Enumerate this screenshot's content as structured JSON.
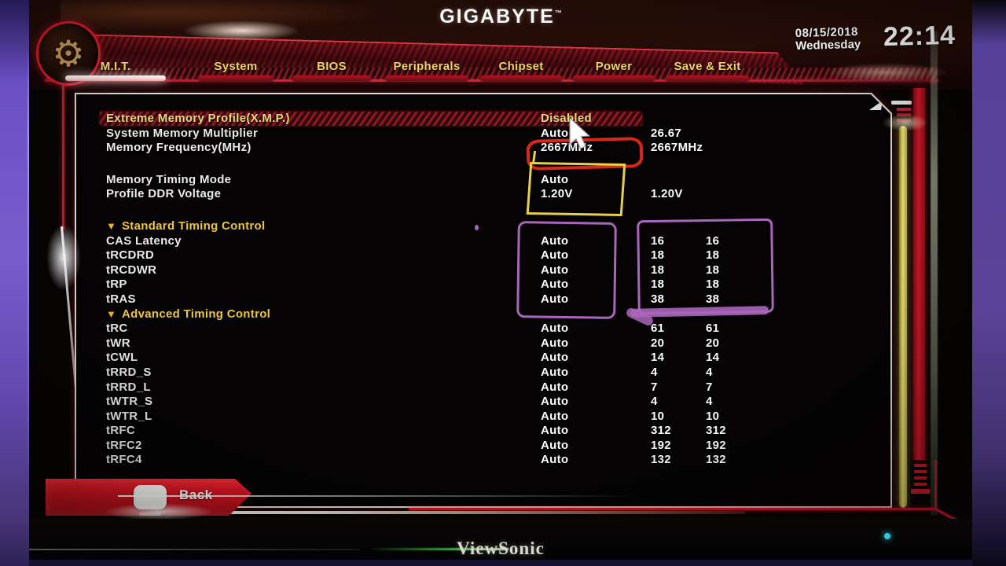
{
  "header": {
    "brand": "GIGABYTE",
    "trademark": "™",
    "date": "08/15/2018",
    "weekday": "Wednesday",
    "time": "22:14"
  },
  "icons": {
    "gear": "⚙",
    "section_collapse": "▼"
  },
  "tabs": [
    {
      "label": "M.I.T.",
      "active": true
    },
    {
      "label": "System",
      "active": false
    },
    {
      "label": "BIOS",
      "active": false
    },
    {
      "label": "Peripherals",
      "active": false
    },
    {
      "label": "Chipset",
      "active": false
    },
    {
      "label": "Power",
      "active": false
    },
    {
      "label": "Save & Exit",
      "active": false
    }
  ],
  "settings_rows": [
    {
      "type": "item",
      "label": "Extreme Memory Profile(X.M.P.)",
      "value": "Disabled",
      "highlighted": true
    },
    {
      "type": "item",
      "label": "System Memory Multiplier",
      "value": "Auto",
      "v1": "26.67"
    },
    {
      "type": "item",
      "label": "Memory Frequency(MHz)",
      "value": "2667MHz",
      "v1": "2667MHz"
    },
    {
      "type": "gap"
    },
    {
      "type": "item",
      "label": "Memory Timing Mode",
      "value": "Auto"
    },
    {
      "type": "item",
      "label": "Profile DDR Voltage",
      "value": "1.20V",
      "v1": "1.20V"
    },
    {
      "type": "gap"
    },
    {
      "type": "section",
      "label": "Standard Timing Control"
    },
    {
      "type": "item",
      "label": "CAS Latency",
      "value": "Auto",
      "v1": "16",
      "v2": "16"
    },
    {
      "type": "item",
      "label": "tRCDRD",
      "value": "Auto",
      "v1": "18",
      "v2": "18"
    },
    {
      "type": "item",
      "label": "tRCDWR",
      "value": "Auto",
      "v1": "18",
      "v2": "18"
    },
    {
      "type": "item",
      "label": "tRP",
      "value": "Auto",
      "v1": "18",
      "v2": "18"
    },
    {
      "type": "item",
      "label": "tRAS",
      "value": "Auto",
      "v1": "38",
      "v2": "38"
    },
    {
      "type": "section",
      "label": "Advanced Timing Control"
    },
    {
      "type": "item",
      "label": "tRC",
      "value": "Auto",
      "v1": "61",
      "v2": "61"
    },
    {
      "type": "item",
      "label": "tWR",
      "value": "Auto",
      "v1": "20",
      "v2": "20"
    },
    {
      "type": "item",
      "label": "tCWL",
      "value": "Auto",
      "v1": "14",
      "v2": "14"
    },
    {
      "type": "item",
      "label": "tRRD_S",
      "value": "Auto",
      "v1": "4",
      "v2": "4"
    },
    {
      "type": "item",
      "label": "tRRD_L",
      "value": "Auto",
      "v1": "7",
      "v2": "7"
    },
    {
      "type": "item",
      "label": "tWTR_S",
      "value": "Auto",
      "v1": "4",
      "v2": "4"
    },
    {
      "type": "item",
      "label": "tWTR_L",
      "value": "Auto",
      "v1": "10",
      "v2": "10"
    },
    {
      "type": "item",
      "label": "tRFC",
      "value": "Auto",
      "v1": "312",
      "v2": "312"
    },
    {
      "type": "item",
      "label": "tRFC2",
      "value": "Auto",
      "v1": "192",
      "v2": "192"
    },
    {
      "type": "item",
      "label": "tRFC4",
      "value": "Auto",
      "v1": "132",
      "v2": "132"
    }
  ],
  "footer": {
    "back_label": "Back"
  },
  "monitor": {
    "brand": "ViewSonic"
  },
  "colors": {
    "accent_red": "#d01828",
    "tab_yellow": "#f0d45c",
    "section_gold": "#eec63a",
    "highlight_yellow": "#ead878",
    "annotation_red": "#d8271b",
    "annotation_yellow": "#e6d24a",
    "annotation_purple": "#aa66bb",
    "backdrop_purple": "#6b50c4",
    "lighting_bar_yellow": "#f0e878"
  }
}
